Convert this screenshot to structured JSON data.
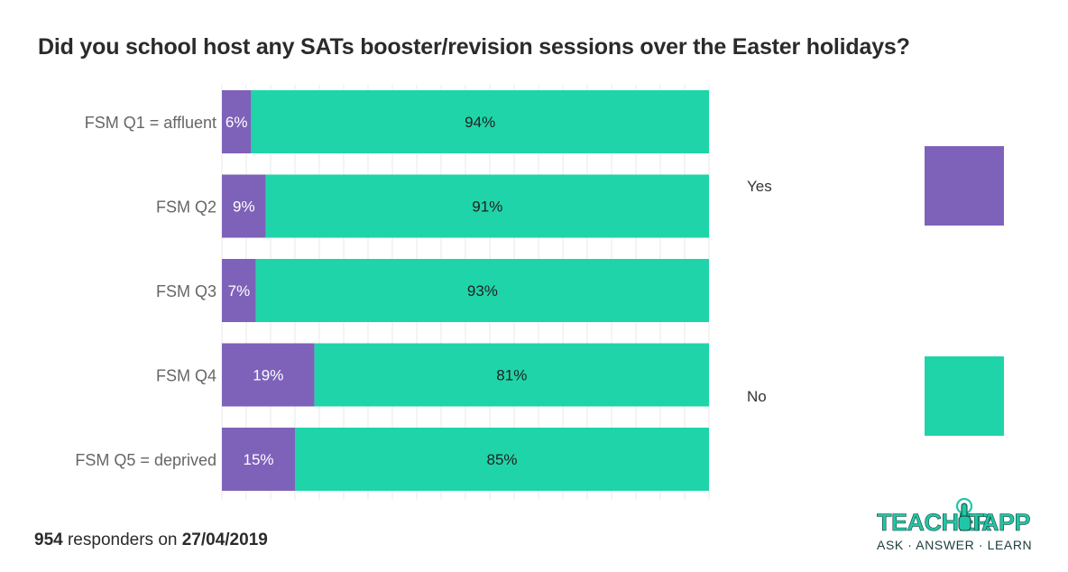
{
  "colors": {
    "yes": "#7e62b9",
    "no": "#1fd4a9",
    "grid": "#e9e9e9"
  },
  "chart_data": {
    "type": "bar",
    "orientation": "horizontal",
    "stacked": true,
    "title": "Did you school host any SATs booster/revision sessions over the Easter holidays?",
    "categories": [
      "FSM Q1 = affluent",
      "FSM Q2",
      "FSM Q3",
      "FSM Q4",
      "FSM Q5 = deprived"
    ],
    "series": [
      {
        "name": "Yes",
        "values": [
          6,
          9,
          7,
          19,
          15
        ],
        "labels": [
          "6%",
          "9%",
          "7%",
          "19%",
          "15%"
        ]
      },
      {
        "name": "No",
        "values": [
          94,
          91,
          93,
          81,
          85
        ],
        "labels": [
          "94%",
          "91%",
          "93%",
          "81%",
          "85%"
        ]
      }
    ],
    "xlim": [
      0,
      100
    ],
    "grid": true,
    "legend": "right"
  },
  "legend": {
    "yes_label": "Yes",
    "no_label": "No"
  },
  "footer": {
    "count": "954",
    "text": "responders on",
    "date": "27/04/2019"
  },
  "logo": {
    "word1": "TEACHER",
    "word2": "TAPP",
    "tagline": "ASK · ANSWER · LEARN"
  }
}
